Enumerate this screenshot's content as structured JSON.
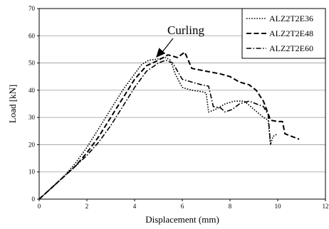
{
  "chart_data": {
    "type": "line",
    "title": "",
    "xlabel": "Displacement (mm)",
    "ylabel": "Load [kN]",
    "xlim": [
      0,
      12
    ],
    "ylim": [
      0,
      70
    ],
    "xticks": [
      "0",
      "2",
      "4",
      "6",
      "8",
      "10",
      "12"
    ],
    "yticks": [
      "0",
      "10",
      "20",
      "30",
      "40",
      "50",
      "60",
      "70"
    ],
    "grid": "horizontal",
    "legend_position": "top-right",
    "annotation": {
      "text": "Curling",
      "x": 4.9,
      "y": 52
    },
    "series": [
      {
        "name": "ALZ2T2E36",
        "style": "dotted",
        "points": [
          [
            0,
            0
          ],
          [
            0.5,
            4
          ],
          [
            1,
            8
          ],
          [
            1.5,
            13
          ],
          [
            2,
            19
          ],
          [
            2.5,
            26
          ],
          [
            3,
            33
          ],
          [
            3.5,
            40
          ],
          [
            4,
            46
          ],
          [
            4.3,
            49.5
          ],
          [
            4.6,
            51
          ],
          [
            5.0,
            51.5
          ],
          [
            5.3,
            52
          ],
          [
            5.5,
            51
          ],
          [
            5.7,
            46
          ],
          [
            6.0,
            41
          ],
          [
            6.4,
            40
          ],
          [
            6.8,
            39.5
          ],
          [
            7.0,
            39
          ],
          [
            7.1,
            32
          ],
          [
            7.4,
            33
          ],
          [
            7.8,
            35
          ],
          [
            8.2,
            36
          ],
          [
            8.6,
            36
          ],
          [
            9.0,
            33
          ],
          [
            9.4,
            30
          ],
          [
            9.6,
            29
          ],
          [
            9.7,
            20
          ],
          [
            9.8,
            23
          ],
          [
            10.0,
            24
          ]
        ]
      },
      {
        "name": "ALZ2T2E48",
        "style": "dashed",
        "points": [
          [
            0,
            0
          ],
          [
            0.5,
            4
          ],
          [
            1,
            8
          ],
          [
            1.5,
            12
          ],
          [
            2,
            17
          ],
          [
            2.5,
            23
          ],
          [
            3,
            30
          ],
          [
            3.5,
            37
          ],
          [
            4,
            44
          ],
          [
            4.5,
            49
          ],
          [
            5.0,
            51
          ],
          [
            5.4,
            53
          ],
          [
            5.6,
            52.5
          ],
          [
            5.8,
            52
          ],
          [
            6.1,
            54
          ],
          [
            6.4,
            48
          ],
          [
            7.0,
            47
          ],
          [
            7.6,
            46
          ],
          [
            8.0,
            45
          ],
          [
            8.4,
            43
          ],
          [
            8.8,
            42
          ],
          [
            9.1,
            40
          ],
          [
            9.4,
            36
          ],
          [
            9.7,
            29
          ],
          [
            10.0,
            28.5
          ],
          [
            10.2,
            28.5
          ],
          [
            10.3,
            24
          ],
          [
            10.6,
            23
          ],
          [
            10.9,
            22
          ]
        ]
      },
      {
        "name": "ALZ2T2E60",
        "style": "dash-dot",
        "points": [
          [
            0,
            0
          ],
          [
            0.5,
            4
          ],
          [
            1,
            8
          ],
          [
            1.5,
            12
          ],
          [
            2,
            16
          ],
          [
            2.5,
            21
          ],
          [
            3,
            27
          ],
          [
            3.5,
            34
          ],
          [
            4,
            41
          ],
          [
            4.5,
            47
          ],
          [
            5.0,
            50
          ],
          [
            5.3,
            51
          ],
          [
            5.6,
            50
          ],
          [
            5.8,
            47
          ],
          [
            6.0,
            44
          ],
          [
            6.4,
            43
          ],
          [
            6.8,
            42
          ],
          [
            7.1,
            41.5
          ],
          [
            7.3,
            34
          ],
          [
            7.6,
            33.5
          ],
          [
            7.8,
            32
          ],
          [
            8.1,
            33
          ],
          [
            8.4,
            35
          ],
          [
            8.8,
            36
          ],
          [
            9.1,
            35
          ],
          [
            9.4,
            34
          ],
          [
            9.6,
            31
          ],
          [
            9.7,
            20
          ]
        ]
      }
    ]
  }
}
